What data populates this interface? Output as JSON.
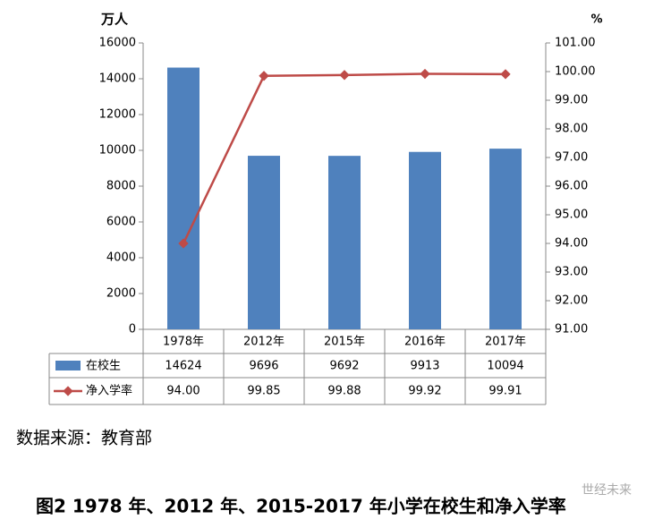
{
  "chart_data": {
    "type": "bar-line",
    "y_label": "万人",
    "y2_label": "%",
    "categories": [
      "1978年",
      "2012年",
      "2015年",
      "2016年",
      "2017年"
    ],
    "series": [
      {
        "name": "在校生",
        "color": "#4f81bd",
        "values": [
          14624,
          9696,
          9692,
          9913,
          10094
        ]
      },
      {
        "name": "净入学率",
        "color": "#be4b48",
        "axis": "y2",
        "values": [
          94.0,
          99.85,
          99.88,
          99.92,
          99.91
        ],
        "value_labels": [
          "94.00",
          "99.85",
          "99.88",
          "99.92",
          "99.91"
        ]
      }
    ],
    "ylim": [
      0,
      16000
    ],
    "yticks": [
      0,
      2000,
      4000,
      6000,
      8000,
      10000,
      12000,
      14000,
      16000
    ],
    "y2lim": [
      91,
      101
    ],
    "y2ticks": [
      {
        "value": 91,
        "label": "91.00"
      },
      {
        "value": 92,
        "label": "92.00"
      },
      {
        "value": 93,
        "label": "93.00"
      },
      {
        "value": 94,
        "label": "94.00"
      },
      {
        "value": 95,
        "label": "95.00"
      },
      {
        "value": 96,
        "label": "96.00"
      },
      {
        "value": 97,
        "label": "97.00"
      },
      {
        "value": 98,
        "label": "98.00"
      },
      {
        "value": 99,
        "label": "99.00"
      },
      {
        "value": 100,
        "label": "100.00"
      },
      {
        "value": 101,
        "label": "101.00"
      }
    ],
    "source": "数据来源：教育部",
    "caption": "图2 1978 年、2012 年、2015-2017 年小学在校生和净入学率",
    "watermark": "世经未来"
  }
}
